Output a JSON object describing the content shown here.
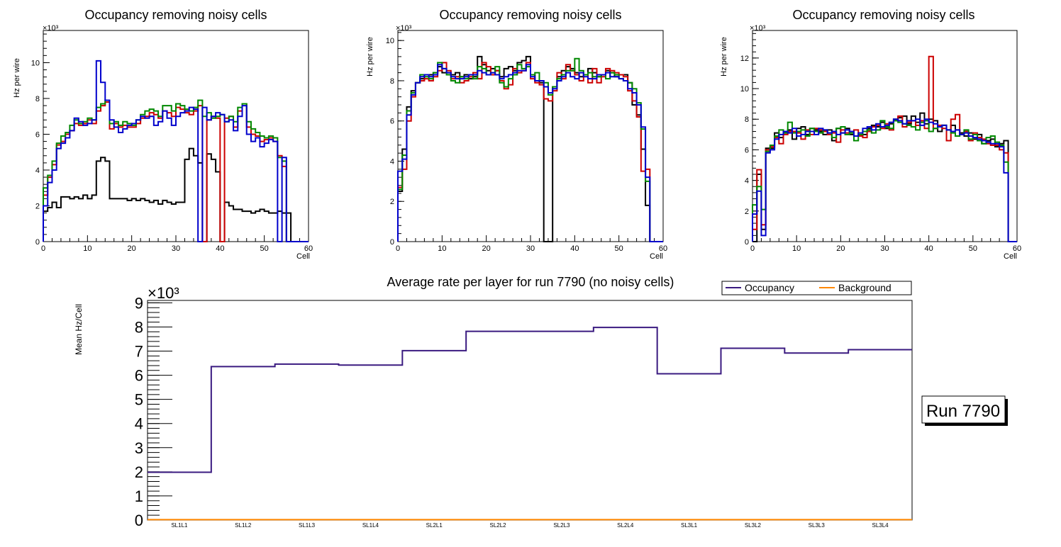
{
  "chart_data": [
    {
      "id": "p1",
      "type": "step",
      "title": "Occupancy removing noisy cells",
      "xlabel": "Cell",
      "ylabel": "Hz per wire",
      "yexp": "×10³",
      "xlim": [
        0,
        60
      ],
      "ylim": [
        0,
        11.8
      ],
      "xticks": [
        "0",
        "10",
        "20",
        "30",
        "40",
        "50",
        "60"
      ],
      "yticks": [
        "0",
        "2",
        "4",
        "6",
        "8",
        "10"
      ],
      "series": [
        {
          "name": "black",
          "color": "#000000",
          "values": [
            1.7,
            1.9,
            2.2,
            1.9,
            2.5,
            2.5,
            2.4,
            2.5,
            2.4,
            2.6,
            2.4,
            2.6,
            4.5,
            4.7,
            4.5,
            2.4,
            2.4,
            2.4,
            2.4,
            2.3,
            2.4,
            2.3,
            2.4,
            2.3,
            2.2,
            2.3,
            2.1,
            2.3,
            2.2,
            2.1,
            2.2,
            2.2,
            4.6,
            5.2,
            4.8,
            4.4,
            0,
            4.9,
            4.6,
            3.9,
            0,
            2.2,
            2.0,
            1.8,
            1.8,
            1.7,
            1.7,
            1.6,
            1.7,
            1.8,
            1.7,
            1.6,
            1.6,
            1.7,
            1.6,
            1.6,
            0,
            0,
            0,
            0
          ]
        },
        {
          "name": "red",
          "color": "#cc0000",
          "values": [
            2.6,
            3.6,
            4.3,
            5.4,
            5.6,
            6.0,
            6.2,
            6.6,
            6.5,
            6.6,
            6.8,
            6.6,
            7.3,
            7.6,
            7.8,
            6.3,
            6.6,
            6.4,
            6.5,
            6.4,
            6.4,
            6.6,
            6.9,
            7.0,
            7.2,
            7.1,
            6.9,
            7.3,
            7.2,
            7.0,
            7.5,
            7.4,
            7.2,
            7.1,
            7.3,
            7.6,
            0,
            6.8,
            7.0,
            6.9,
            0,
            6.9,
            7.0,
            6.4,
            7.3,
            7.7,
            6.4,
            6.0,
            5.9,
            5.6,
            5.7,
            5.8,
            5.6,
            4.8,
            4.2,
            0,
            0,
            0,
            0,
            0
          ]
        },
        {
          "name": "green",
          "color": "#008800",
          "values": [
            3.0,
            3.7,
            4.5,
            5.5,
            5.9,
            6.1,
            6.5,
            6.8,
            6.6,
            6.7,
            6.9,
            6.8,
            7.5,
            7.7,
            7.9,
            6.6,
            6.7,
            6.5,
            6.7,
            6.6,
            6.5,
            6.8,
            7.1,
            7.3,
            7.4,
            7.3,
            7.0,
            7.6,
            7.6,
            7.3,
            7.7,
            7.6,
            7.4,
            7.3,
            7.5,
            7.9,
            7.0,
            7.2,
            6.9,
            7.0,
            7.1,
            6.7,
            7.0,
            6.7,
            7.5,
            7.7,
            6.7,
            6.3,
            6.1,
            5.9,
            5.8,
            5.9,
            5.8,
            4.7,
            4.5,
            0,
            0,
            0,
            0,
            0
          ]
        },
        {
          "name": "blue",
          "color": "#0000cc",
          "values": [
            2.0,
            3.3,
            4.0,
            5.2,
            5.5,
            5.8,
            6.2,
            6.9,
            6.7,
            6.5,
            6.6,
            6.8,
            10.1,
            8.9,
            7.9,
            6.8,
            6.4,
            6.1,
            6.3,
            6.5,
            6.6,
            6.8,
            7.0,
            6.9,
            7.0,
            6.5,
            6.7,
            7.3,
            6.9,
            6.5,
            7.0,
            7.2,
            7.3,
            7.5,
            7.4,
            0,
            7.5,
            6.8,
            7.0,
            7.2,
            7.1,
            6.7,
            6.8,
            6.2,
            7.0,
            7.6,
            6.0,
            5.6,
            5.8,
            5.3,
            5.5,
            5.7,
            5.6,
            0,
            4.7,
            0,
            0,
            0,
            0,
            0
          ]
        }
      ]
    },
    {
      "id": "p2",
      "type": "step",
      "title": "Occupancy removing noisy cells",
      "xlabel": "Cell",
      "ylabel": "Hz per wire",
      "yexp": "×10³",
      "xlim": [
        0,
        60
      ],
      "ylim": [
        0,
        10.5
      ],
      "xticks": [
        "0",
        "10",
        "20",
        "30",
        "40",
        "50",
        "60"
      ],
      "yticks": [
        "0",
        "2",
        "4",
        "6",
        "8",
        "10"
      ],
      "series": [
        {
          "name": "black",
          "color": "#000000",
          "values": [
            2.5,
            4.6,
            6.7,
            7.5,
            7.9,
            8.1,
            8.3,
            8.3,
            8.4,
            8.7,
            8.4,
            8.4,
            8.3,
            8.4,
            8.2,
            8.3,
            8.1,
            8.2,
            9.2,
            8.8,
            8.5,
            8.6,
            8.5,
            8.2,
            8.6,
            8.7,
            8.5,
            8.9,
            9.0,
            9.2,
            8.3,
            8.0,
            7.9,
            0,
            0,
            7.7,
            8.2,
            8.5,
            8.7,
            8.6,
            8.4,
            8.2,
            8.3,
            8.6,
            8.4,
            8.2,
            8.3,
            8.5,
            8.4,
            8.2,
            8.3,
            8.3,
            7.9,
            6.8,
            6.3,
            4.6,
            1.8,
            0,
            0,
            0
          ]
        },
        {
          "name": "red",
          "color": "#cc0000",
          "values": [
            2.7,
            3.6,
            6.0,
            7.2,
            7.9,
            8.0,
            8.1,
            8.0,
            8.2,
            8.5,
            8.9,
            8.5,
            8.1,
            8.2,
            7.9,
            8.0,
            8.2,
            8.4,
            8.1,
            8.9,
            8.7,
            8.3,
            8.5,
            8.0,
            7.6,
            7.8,
            8.6,
            8.4,
            8.5,
            8.9,
            8.1,
            7.9,
            7.8,
            7.1,
            7.0,
            7.5,
            8.4,
            8.1,
            8.8,
            8.5,
            8.3,
            8.0,
            8.3,
            7.9,
            8.6,
            7.9,
            8.2,
            8.6,
            8.5,
            8.4,
            8.3,
            8.2,
            7.5,
            7.0,
            6.2,
            3.5,
            3.6,
            0,
            0,
            0
          ]
        },
        {
          "name": "green",
          "color": "#008800",
          "values": [
            2.6,
            4.3,
            6.5,
            7.4,
            7.9,
            8.3,
            8.2,
            8.1,
            8.4,
            8.9,
            8.6,
            8.3,
            8.0,
            7.9,
            8.2,
            8.1,
            8.3,
            8.1,
            8.7,
            8.6,
            8.3,
            8.4,
            8.7,
            7.9,
            7.7,
            8.1,
            8.3,
            8.8,
            8.6,
            8.7,
            8.3,
            8.4,
            8.0,
            7.9,
            7.3,
            7.7,
            8.1,
            8.3,
            8.5,
            8.5,
            9.1,
            8.5,
            8.3,
            8.4,
            8.2,
            8.2,
            8.3,
            8.1,
            8.4,
            8.3,
            8.1,
            8.0,
            7.9,
            7.6,
            6.9,
            5.6,
            3.0,
            0,
            0,
            0
          ]
        },
        {
          "name": "blue",
          "color": "#0000cc",
          "values": [
            3.5,
            4.1,
            6.3,
            7.3,
            7.9,
            8.2,
            8.3,
            8.2,
            8.3,
            8.8,
            8.6,
            8.4,
            8.2,
            8.1,
            8.1,
            8.2,
            8.3,
            8.3,
            8.5,
            8.4,
            8.3,
            8.4,
            8.3,
            8.1,
            8.2,
            8.3,
            8.4,
            8.5,
            8.5,
            8.8,
            8.2,
            8.0,
            8.0,
            7.7,
            7.4,
            7.6,
            8.0,
            8.2,
            8.4,
            8.2,
            8.1,
            8.4,
            8.2,
            8.1,
            8.1,
            8.3,
            8.3,
            8.4,
            8.2,
            8.2,
            8.1,
            8.0,
            7.6,
            7.4,
            6.8,
            5.7,
            3.2,
            0,
            0,
            0
          ]
        }
      ]
    },
    {
      "id": "p3",
      "type": "step",
      "title": "Occupancy removing noisy cells",
      "xlabel": "Cell",
      "ylabel": "Hz per wire",
      "yexp": "×10³",
      "xlim": [
        0,
        60
      ],
      "ylim": [
        0,
        13.8
      ],
      "xticks": [
        "0",
        "10",
        "20",
        "30",
        "40",
        "50",
        "60"
      ],
      "yticks": [
        "0",
        "2",
        "4",
        "6",
        "8",
        "10",
        "12"
      ],
      "series": [
        {
          "name": "black",
          "color": "#000000",
          "values": [
            0,
            4.4,
            0.8,
            6.1,
            6.1,
            7.1,
            6.8,
            7.1,
            7.3,
            6.7,
            7.4,
            7.5,
            7.0,
            7.4,
            7.3,
            7.2,
            7.0,
            7.3,
            6.6,
            7.4,
            7.1,
            7.4,
            7.0,
            6.9,
            6.9,
            7.0,
            7.4,
            7.6,
            7.5,
            7.8,
            7.4,
            7.7,
            8.0,
            8.1,
            8.2,
            7.7,
            8.2,
            7.8,
            8.4,
            7.7,
            8.0,
            7.9,
            7.2,
            7.6,
            7.3,
            7.6,
            7.3,
            7.1,
            6.9,
            7.1,
            6.7,
            7.0,
            6.4,
            6.6,
            6.7,
            6.2,
            6.4,
            6.6,
            0,
            0
          ]
        },
        {
          "name": "red",
          "color": "#cc0000",
          "values": [
            0.8,
            4.7,
            1.1,
            6.0,
            6.2,
            6.8,
            6.4,
            7.0,
            7.2,
            7.2,
            7.1,
            6.7,
            7.3,
            7.0,
            7.4,
            7.3,
            7.2,
            7.0,
            7.1,
            6.5,
            7.3,
            7.1,
            7.2,
            7.3,
            6.9,
            6.8,
            7.2,
            7.5,
            7.6,
            7.4,
            7.7,
            7.3,
            7.9,
            8.2,
            7.5,
            7.8,
            7.9,
            7.6,
            7.9,
            7.4,
            12.1,
            7.4,
            7.6,
            7.4,
            6.6,
            8.0,
            8.3,
            7.0,
            7.2,
            6.6,
            7.1,
            6.8,
            6.7,
            6.4,
            6.3,
            6.3,
            6.0,
            5.8,
            0,
            0
          ]
        },
        {
          "name": "green",
          "color": "#008800",
          "values": [
            2.4,
            3.6,
            2.1,
            5.9,
            6.3,
            6.9,
            7.3,
            7.1,
            7.8,
            7.1,
            7.2,
            7.3,
            6.9,
            7.4,
            7.2,
            7.1,
            7.3,
            7.1,
            6.8,
            7.4,
            7.5,
            7.0,
            7.1,
            6.6,
            7.0,
            7.2,
            7.3,
            7.1,
            7.3,
            7.9,
            7.5,
            7.4,
            7.9,
            7.8,
            7.7,
            7.6,
            7.5,
            7.3,
            7.8,
            7.9,
            7.2,
            7.4,
            7.5,
            7.6,
            7.3,
            7.1,
            6.9,
            7.0,
            7.3,
            6.7,
            7.0,
            6.6,
            6.4,
            6.8,
            6.9,
            6.5,
            6.3,
            5.2,
            0,
            0
          ]
        },
        {
          "name": "blue",
          "color": "#0000cc",
          "values": [
            1.8,
            3.3,
            0.4,
            5.8,
            6.0,
            6.7,
            7.0,
            7.2,
            7.1,
            7.4,
            6.9,
            7.0,
            7.2,
            7.2,
            7.0,
            7.4,
            7.3,
            7.1,
            7.2,
            7.0,
            7.1,
            7.3,
            7.2,
            6.9,
            7.1,
            7.4,
            7.5,
            7.3,
            7.7,
            7.5,
            7.6,
            7.8,
            8.0,
            7.9,
            7.7,
            7.9,
            7.9,
            8.0,
            7.6,
            8.0,
            7.8,
            7.7,
            7.5,
            7.6,
            7.3,
            7.2,
            7.3,
            7.0,
            7.1,
            6.9,
            6.8,
            6.7,
            6.6,
            6.5,
            6.4,
            6.4,
            6.2,
            4.5,
            0,
            0
          ]
        }
      ]
    },
    {
      "id": "p4",
      "type": "step",
      "title": "Average rate per layer for run 7790 (no noisy cells)",
      "xlabel": "",
      "ylabel": "Mean Hz/Cell",
      "yexp": "×10³",
      "ylim": [
        0,
        9.1
      ],
      "yticks": [
        "0",
        "1",
        "2",
        "3",
        "4",
        "5",
        "6",
        "7",
        "8",
        "9"
      ],
      "categories": [
        "SL1L1",
        "SL1L2",
        "SL1L3",
        "SL1L4",
        "SL2L1",
        "SL2L2",
        "SL2L3",
        "SL2L4",
        "SL3L1",
        "SL3L2",
        "SL3L3",
        "SL3L4"
      ],
      "series": [
        {
          "name": "Occupancy",
          "color": "#3a1a80",
          "values": [
            1.98,
            6.36,
            6.46,
            6.42,
            7.02,
            7.82,
            7.82,
            7.98,
            6.06,
            7.12,
            6.92,
            7.06
          ]
        },
        {
          "name": "Background",
          "color": "#ff8800",
          "values": [
            0.02,
            0.02,
            0.02,
            0.02,
            0.02,
            0.02,
            0.02,
            0.02,
            0.02,
            0.02,
            0.02,
            0.02
          ]
        }
      ],
      "legend": [
        "Occupancy",
        "Background"
      ],
      "run_label": "Run 7790"
    }
  ]
}
